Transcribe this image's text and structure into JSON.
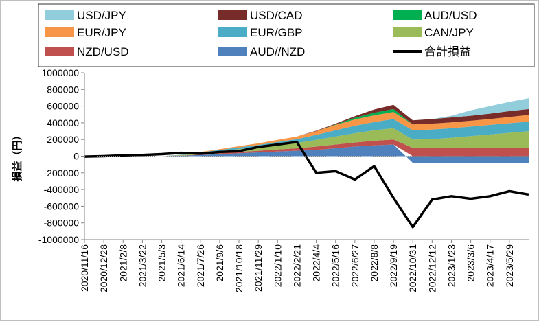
{
  "chart_data": {
    "type": "area",
    "stacked": true,
    "ylabel": "損益（円）",
    "xlabel": "",
    "ylim": [
      -1000000,
      1000000
    ],
    "yticks": [
      1000000,
      800000,
      600000,
      400000,
      200000,
      0,
      -200000,
      -400000,
      -600000,
      -800000,
      -1000000
    ],
    "ytick_labels": [
      "1000000",
      "800000",
      "600000",
      "400000",
      "200000",
      "0",
      "-200000",
      "-400000",
      "-600000",
      "-800000",
      "-1000000"
    ],
    "legend_position": "top",
    "grid": false,
    "x": [
      "2020/11/16",
      "2020/12/28",
      "2021/2/8",
      "2021/3/22",
      "2021/5/3",
      "2021/6/14",
      "2021/7/26",
      "2021/9/6",
      "2021/10/18",
      "2021/11/29",
      "2022/1/10",
      "2022/2/21",
      "2022/4/4",
      "2022/5/16",
      "2022/6/27",
      "2022/8/8",
      "2022/9/19",
      "2022/10/31",
      "2022/12/12",
      "2023/1/23",
      "2023/3/6",
      "2023/4/17",
      "2023/5/29",
      "2023/7/10"
    ],
    "xtick_labels": [
      "2020/11/16",
      "2020/12/28",
      "2021/2/8",
      "2021/3/22",
      "2021/5/3",
      "2021/6/14",
      "2021/7/26",
      "2021/9/6",
      "2021/10/18",
      "2021/11/29",
      "2022/1/10",
      "2022/2/21",
      "2022/4/4",
      "2022/5/16",
      "2022/6/27",
      "2022/8/8",
      "2022/9/19",
      "2022/10/31",
      "2022/12/12",
      "2023/1/23",
      "2023/3/6",
      "2023/4/17",
      "2023/5/29"
    ],
    "series": [
      {
        "name": "AUD//NZD",
        "color": "#4F81BD",
        "kind": "area",
        "values": [
          0,
          0,
          0,
          0,
          0,
          5000,
          15000,
          25000,
          35000,
          45000,
          55000,
          65000,
          75000,
          95000,
          115000,
          130000,
          140000,
          -80000,
          -80000,
          -80000,
          -80000,
          -80000,
          -80000,
          -80000
        ]
      },
      {
        "name": "NZD/USD",
        "color": "#C0504D",
        "kind": "area",
        "values": [
          0,
          0,
          0,
          0,
          0,
          2000,
          5000,
          10000,
          15000,
          20000,
          25000,
          30000,
          40000,
          45000,
          50000,
          55000,
          60000,
          100000,
          100000,
          100000,
          100000,
          100000,
          100000,
          100000
        ]
      },
      {
        "name": "CAN/JPY",
        "color": "#9BBB59",
        "kind": "area",
        "values": [
          0,
          0,
          0,
          0,
          0,
          5000,
          15000,
          25000,
          35000,
          45000,
          55000,
          65000,
          80000,
          95000,
          110000,
          125000,
          135000,
          100000,
          105000,
          120000,
          140000,
          160000,
          180000,
          200000
        ]
      },
      {
        "name": "EUR/GBP",
        "color": "#4BACC6",
        "kind": "area",
        "values": [
          0,
          0,
          0,
          0,
          0,
          5000,
          10000,
          15000,
          20000,
          25000,
          35000,
          45000,
          60000,
          75000,
          90000,
          100000,
          110000,
          110000,
          115000,
          115000,
          115000,
          115000,
          115000,
          115000
        ]
      },
      {
        "name": "EUR/JPY",
        "color": "#F79646",
        "kind": "area",
        "values": [
          0,
          0,
          0,
          0,
          0,
          2000,
          5000,
          10000,
          15000,
          20000,
          25000,
          30000,
          45000,
          65000,
          75000,
          80000,
          85000,
          70000,
          70000,
          70000,
          70000,
          70000,
          75000,
          80000
        ]
      },
      {
        "name": "AUD/USD",
        "color": "#00B050",
        "kind": "area",
        "values": [
          0,
          0,
          0,
          0,
          0,
          0,
          0,
          0,
          0,
          0,
          0,
          0,
          0,
          5000,
          20000,
          30000,
          35000,
          0,
          0,
          0,
          0,
          0,
          0,
          0
        ]
      },
      {
        "name": "USD/CAD",
        "color": "#772C2A",
        "kind": "area",
        "values": [
          0,
          0,
          0,
          0,
          0,
          0,
          0,
          0,
          0,
          0,
          0,
          0,
          5000,
          10000,
          20000,
          40000,
          50000,
          50000,
          55000,
          60000,
          60000,
          65000,
          70000,
          70000
        ]
      },
      {
        "name": "USD/JPY",
        "color": "#92CDDC",
        "kind": "area",
        "values": [
          0,
          0,
          0,
          0,
          0,
          0,
          0,
          0,
          0,
          0,
          0,
          0,
          0,
          0,
          0,
          0,
          0,
          0,
          0,
          20000,
          65000,
          90000,
          110000,
          130000
        ]
      },
      {
        "name": "合計損益",
        "color": "#000000",
        "kind": "line",
        "values": [
          -5000,
          0,
          10000,
          15000,
          25000,
          40000,
          30000,
          50000,
          60000,
          110000,
          140000,
          170000,
          -200000,
          -180000,
          -280000,
          -120000,
          -500000,
          -850000,
          -520000,
          -480000,
          -510000,
          -480000,
          -420000,
          -460000
        ]
      }
    ],
    "legend_order": [
      "USD/JPY",
      "USD/CAD",
      "AUD/USD",
      "EUR/JPY",
      "EUR/GBP",
      "CAN/JPY",
      "NZD/USD",
      "AUD//NZD",
      "合計損益"
    ]
  }
}
